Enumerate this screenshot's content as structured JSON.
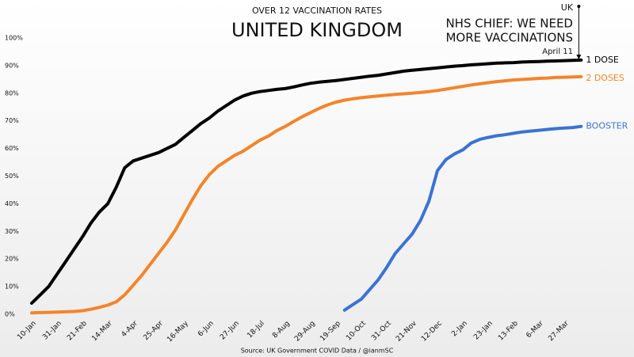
{
  "chart_data": {
    "type": "line",
    "subtitle": "OVER 12 VACCINATION RATES",
    "title": "UNITED KINGDOM",
    "source": "Source: UK Government COVID Data / @ianmSC",
    "annotation": {
      "region": "UK",
      "text": [
        "NHS CHIEF: WE NEED",
        "MORE VACCINATIONS"
      ],
      "date": "April 11"
    },
    "categories": [
      "10-Jan",
      null,
      null,
      "31-Jan",
      null,
      null,
      "21-Feb",
      null,
      null,
      "14-Mar",
      null,
      null,
      "4-Apr",
      null,
      null,
      "25-Apr",
      null,
      null,
      "16-May",
      null,
      null,
      "6-Jun",
      null,
      null,
      "27-Jun",
      null,
      null,
      "18-Jul",
      null,
      null,
      "8-Aug",
      null,
      null,
      "29-Aug",
      null,
      null,
      "19-Sep",
      null,
      null,
      "10-Oct",
      null,
      null,
      "31-Oct",
      null,
      null,
      "21-Nov",
      null,
      null,
      "12-Dec",
      null,
      null,
      "2-Jan",
      null,
      null,
      "23-Jan",
      null,
      null,
      "13-Feb",
      null,
      null,
      "6-Mar",
      null,
      null,
      "27-Mar",
      null,
      null
    ],
    "series": [
      {
        "name": "1 DOSE",
        "color": "#000000",
        "values": [
          4,
          7,
          10,
          14.5,
          19,
          23.5,
          28,
          33,
          37,
          40,
          46,
          53,
          55.5,
          56.5,
          57.5,
          58.5,
          60,
          61.5,
          64,
          66.5,
          69,
          71,
          73.5,
          75.5,
          77.5,
          79,
          80,
          80.6,
          81,
          81.4,
          81.7,
          82.3,
          83,
          83.6,
          84,
          84.3,
          84.6,
          85,
          85.4,
          85.8,
          86.2,
          86.5,
          87,
          87.5,
          88,
          88.3,
          88.6,
          88.9,
          89.2,
          89.5,
          89.8,
          90,
          90.3,
          90.5,
          90.7,
          90.9,
          91,
          91.1,
          91.3,
          91.4,
          91.5,
          91.6,
          91.7,
          91.8,
          91.9,
          92
        ]
      },
      {
        "name": "2 DOSES",
        "color": "#f5842a",
        "values": [
          0.5,
          0.6,
          0.7,
          0.8,
          0.9,
          1,
          1.3,
          1.8,
          2.5,
          3.3,
          4.5,
          7,
          10.5,
          14,
          18,
          22,
          26,
          30.5,
          36,
          41.5,
          46.5,
          50.5,
          53.5,
          55.5,
          57.5,
          59,
          61,
          63,
          64.5,
          66.5,
          68,
          69.8,
          71.5,
          73,
          74.5,
          75.8,
          76.8,
          77.5,
          78,
          78.4,
          78.7,
          79,
          79.3,
          79.6,
          79.8,
          80,
          80.3,
          80.6,
          81,
          81.5,
          82,
          82.5,
          83,
          83.4,
          83.8,
          84.2,
          84.5,
          84.8,
          85,
          85.2,
          85.4,
          85.5,
          85.7,
          85.8,
          85.9,
          86
        ]
      },
      {
        "name": "BOOSTER",
        "color": "#3b73d4",
        "values": [
          null,
          null,
          null,
          null,
          null,
          null,
          null,
          null,
          null,
          null,
          null,
          null,
          null,
          null,
          null,
          null,
          null,
          null,
          null,
          null,
          null,
          null,
          null,
          null,
          null,
          null,
          null,
          null,
          null,
          null,
          null,
          null,
          null,
          null,
          null,
          null,
          null,
          1.5,
          3.5,
          5.5,
          9,
          12.5,
          17,
          22,
          25.5,
          29,
          34,
          41,
          52,
          56,
          58,
          59.5,
          62,
          63.3,
          64,
          64.6,
          65,
          65.5,
          66,
          66.3,
          66.6,
          66.9,
          67.2,
          67.4,
          67.6,
          68
        ]
      }
    ],
    "ylim": [
      0,
      100
    ],
    "yticks": [
      {
        "value": 0,
        "label": "0%"
      },
      {
        "value": 10,
        "label": "10%"
      },
      {
        "value": 20,
        "label": "20%"
      },
      {
        "value": 30,
        "label": "30%"
      },
      {
        "value": 40,
        "label": "40%"
      },
      {
        "value": 50,
        "label": "50%"
      },
      {
        "value": 60,
        "label": "60%"
      },
      {
        "value": 70,
        "label": "70%"
      },
      {
        "value": 80,
        "label": "80%"
      },
      {
        "value": 90,
        "label": "90%"
      },
      {
        "value": 100,
        "label": "100%"
      }
    ],
    "grid": false
  }
}
